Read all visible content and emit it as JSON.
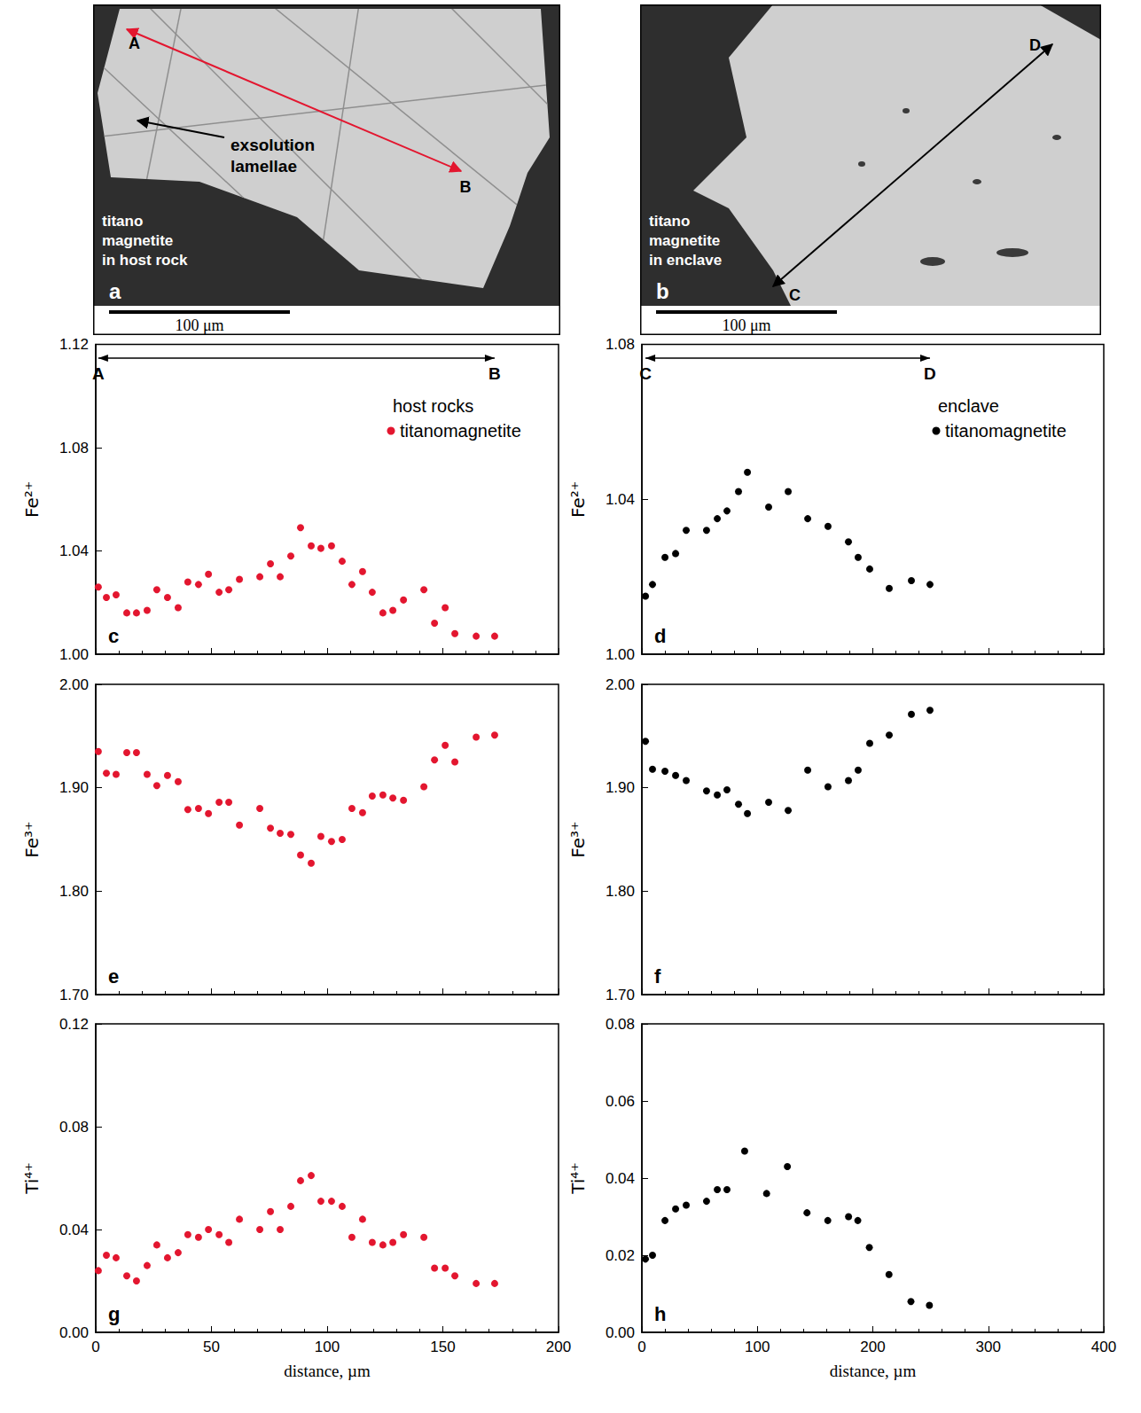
{
  "images": [
    {
      "letter": "a",
      "caption": [
        "titano",
        "magnetite",
        "in host rock"
      ],
      "annotation": [
        "exsolution",
        "lamellae"
      ],
      "points": [
        "A",
        "B"
      ],
      "scale_bar": "100 μm",
      "color": "#e3162f"
    },
    {
      "letter": "b",
      "caption": [
        "titano",
        "magnetite",
        "in enclave"
      ],
      "points": [
        "C",
        "D"
      ],
      "scale_bar": "100 μm",
      "color": "#000000"
    }
  ],
  "chart_data": [
    {
      "type": "scatter",
      "letter": "c",
      "y_label": "Fe²⁺",
      "span": [
        "A",
        "B"
      ],
      "legend_title": "host rocks",
      "legend": "top right",
      "tick_labels": "y",
      "xlim": [
        0,
        200
      ],
      "xticks": [
        0,
        50,
        100,
        150,
        200
      ],
      "ylim": [
        1.0,
        1.12
      ],
      "yticks": [
        {
          "value": 1.0,
          "label": "1.00"
        },
        {
          "value": 1.04,
          "label": "1.04"
        },
        {
          "value": 1.08,
          "label": "1.08"
        },
        {
          "value": 1.12,
          "label": "1.12"
        }
      ],
      "x": [
        1.1,
        4.6,
        8.8,
        13.4,
        17.6,
        22.2,
        26.4,
        31,
        35.6,
        39.8,
        44.4,
        48.7,
        53.3,
        57.5,
        62.1,
        70.9,
        75.5,
        79.7,
        84.3,
        88.5,
        93.1,
        97.3,
        101.9,
        106.5,
        110.7,
        115.3,
        119.5,
        124.1,
        128.4,
        133,
        141.8,
        146.4,
        151,
        155.2,
        164.4,
        172.4
      ],
      "series": [
        {
          "name": "titanomagnetite",
          "color": "#e3162f",
          "marker": "circle",
          "values": [
            1.026,
            1.022,
            1.023,
            1.016,
            1.016,
            1.017,
            1.025,
            1.022,
            1.018,
            1.028,
            1.027,
            1.031,
            1.024,
            1.025,
            1.029,
            1.03,
            1.035,
            1.03,
            1.038,
            1.049,
            1.042,
            1.041,
            1.042,
            1.036,
            1.027,
            1.032,
            1.024,
            1.016,
            1.017,
            1.021,
            1.025,
            1.012,
            1.018,
            1.008,
            1.007,
            1.007
          ]
        }
      ]
    },
    {
      "type": "scatter",
      "letter": "d",
      "y_label": "Fe²⁺",
      "span": [
        "C",
        "D"
      ],
      "legend_title": "enclave",
      "legend": "top right",
      "tick_labels": "y",
      "xlim": [
        0,
        400
      ],
      "xticks": [
        0,
        100,
        200,
        300,
        400
      ],
      "ylim": [
        1.0,
        1.08
      ],
      "yticks": [
        {
          "value": 1.0,
          "label": "1.00"
        },
        {
          "value": 1.04,
          "label": "1.04"
        },
        {
          "value": 1.08,
          "label": "1.08"
        }
      ],
      "x": [
        3.1,
        9.2,
        20,
        29.2,
        38.4,
        56,
        65.3,
        73.7,
        83.7,
        91.4,
        109.8,
        126.7,
        143.6,
        161.2,
        178.9,
        187.3,
        197.3,
        214.2,
        233.4,
        249.5
      ],
      "series": [
        {
          "name": "titanomagnetite",
          "color": "#000000",
          "marker": "circle",
          "values": [
            1.015,
            1.018,
            1.025,
            1.026,
            1.032,
            1.032,
            1.035,
            1.037,
            1.042,
            1.047,
            1.038,
            1.042,
            1.035,
            1.033,
            1.029,
            1.025,
            1.022,
            1.017,
            1.019,
            1.018
          ]
        }
      ]
    },
    {
      "type": "scatter",
      "letter": "e",
      "y_label": "Fe³⁺",
      "tick_labels": "y",
      "xlim": [
        0,
        200
      ],
      "xticks": [
        0,
        50,
        100,
        150,
        200
      ],
      "ylim": [
        1.7,
        2.0
      ],
      "yticks": [
        {
          "value": 1.7,
          "label": "1.70"
        },
        {
          "value": 1.8,
          "label": "1.80"
        },
        {
          "value": 1.9,
          "label": "1.90"
        },
        {
          "value": 2.0,
          "label": "2.00"
        }
      ],
      "x": [
        1.1,
        4.6,
        8.8,
        13.4,
        17.6,
        22.2,
        26.4,
        31,
        35.6,
        39.8,
        44.4,
        48.7,
        53.3,
        57.5,
        62.1,
        70.9,
        75.5,
        79.7,
        84.3,
        88.5,
        93.1,
        97.3,
        101.9,
        106.5,
        110.7,
        115.3,
        119.5,
        124.1,
        128.4,
        133,
        141.8,
        146.4,
        151,
        155.2,
        164.4,
        172.4
      ],
      "series": [
        {
          "color": "#e3162f",
          "marker": "circle",
          "values": [
            1.935,
            1.914,
            1.913,
            1.934,
            1.934,
            1.913,
            1.902,
            1.912,
            1.906,
            1.879,
            1.88,
            1.875,
            1.886,
            1.886,
            1.864,
            1.88,
            1.861,
            1.856,
            1.855,
            1.835,
            1.827,
            1.853,
            1.848,
            1.85,
            1.88,
            1.876,
            1.892,
            1.893,
            1.89,
            1.888,
            1.901,
            1.927,
            1.941,
            1.925,
            1.949,
            1.951
          ]
        }
      ]
    },
    {
      "type": "scatter",
      "letter": "f",
      "y_label": "Fe³⁺",
      "tick_labels": "y",
      "xlim": [
        0,
        400
      ],
      "xticks": [
        0,
        100,
        200,
        300,
        400
      ],
      "ylim": [
        1.7,
        2.0
      ],
      "yticks": [
        {
          "value": 1.7,
          "label": "1.70"
        },
        {
          "value": 1.8,
          "label": "1.80"
        },
        {
          "value": 1.9,
          "label": "1.90"
        },
        {
          "value": 2.0,
          "label": "2.00"
        }
      ],
      "x": [
        3.1,
        9.2,
        20,
        29.2,
        38.4,
        56,
        65.3,
        73.7,
        83.7,
        91.4,
        109.8,
        126.7,
        143.6,
        161.2,
        178.9,
        187.3,
        197.3,
        214.2,
        233.4,
        249.5
      ],
      "series": [
        {
          "color": "#000000",
          "marker": "circle",
          "values": [
            1.945,
            1.918,
            1.916,
            1.912,
            1.907,
            1.897,
            1.893,
            1.898,
            1.884,
            1.875,
            1.886,
            1.878,
            1.917,
            1.901,
            1.907,
            1.917,
            1.943,
            1.951,
            1.971,
            1.975
          ]
        }
      ]
    },
    {
      "type": "scatter",
      "letter": "g",
      "y_label": "Ti⁴⁺",
      "x_label": "distance, µm",
      "xlim": [
        0,
        200
      ],
      "xticks": [
        0,
        50,
        100,
        150,
        200
      ],
      "ylim": [
        0,
        0.12
      ],
      "yticks": [
        {
          "value": 0,
          "label": "0.00"
        },
        {
          "value": 0.04,
          "label": "0.04"
        },
        {
          "value": 0.08,
          "label": "0.08"
        },
        {
          "value": 0.12,
          "label": "0.12"
        }
      ],
      "x": [
        1.1,
        4.6,
        8.8,
        13.4,
        17.6,
        22.2,
        26.4,
        31,
        35.6,
        39.8,
        44.4,
        48.7,
        53.3,
        57.5,
        62.1,
        70.9,
        75.5,
        79.7,
        84.3,
        88.5,
        93.1,
        97.3,
        101.9,
        106.5,
        110.7,
        115.3,
        119.5,
        124.1,
        128.4,
        133,
        141.8,
        146.4,
        151,
        155.2,
        164.4,
        172.4
      ],
      "series": [
        {
          "color": "#e3162f",
          "marker": "circle",
          "values": [
            0.024,
            0.03,
            0.029,
            0.022,
            0.02,
            0.026,
            0.034,
            0.029,
            0.031,
            0.038,
            0.037,
            0.04,
            0.038,
            0.035,
            0.044,
            0.04,
            0.047,
            0.04,
            0.049,
            0.059,
            0.061,
            0.051,
            0.051,
            0.049,
            0.037,
            0.044,
            0.035,
            0.034,
            0.035,
            0.038,
            0.037,
            0.025,
            0.025,
            0.022,
            0.019,
            0.019
          ]
        }
      ]
    },
    {
      "type": "scatter",
      "letter": "h",
      "y_label": "Ti⁴⁺",
      "x_label": "distance, µm",
      "xlim": [
        0,
        400
      ],
      "xticks": [
        0,
        100,
        200,
        300,
        400
      ],
      "ylim": [
        0,
        0.08
      ],
      "yticks": [
        {
          "value": 0,
          "label": "0.00"
        },
        {
          "value": 0.02,
          "label": "0.02"
        },
        {
          "value": 0.04,
          "label": "0.04"
        },
        {
          "value": 0.06,
          "label": "0.06"
        },
        {
          "value": 0.08,
          "label": "0.08"
        }
      ],
      "x": [
        3.1,
        9.2,
        20,
        29.2,
        38.4,
        56,
        65.3,
        73.7,
        89,
        108,
        126,
        143,
        161,
        179,
        187,
        197,
        214,
        233,
        249
      ],
      "series": [
        {
          "color": "#000000",
          "marker": "circle",
          "values": [
            0.019,
            0.02,
            0.029,
            0.032,
            0.033,
            0.034,
            0.037,
            0.037,
            0.047,
            0.036,
            0.043,
            0.031,
            0.029,
            0.03,
            0.029,
            0.022,
            0.015,
            0.008,
            0.007
          ]
        }
      ]
    }
  ]
}
